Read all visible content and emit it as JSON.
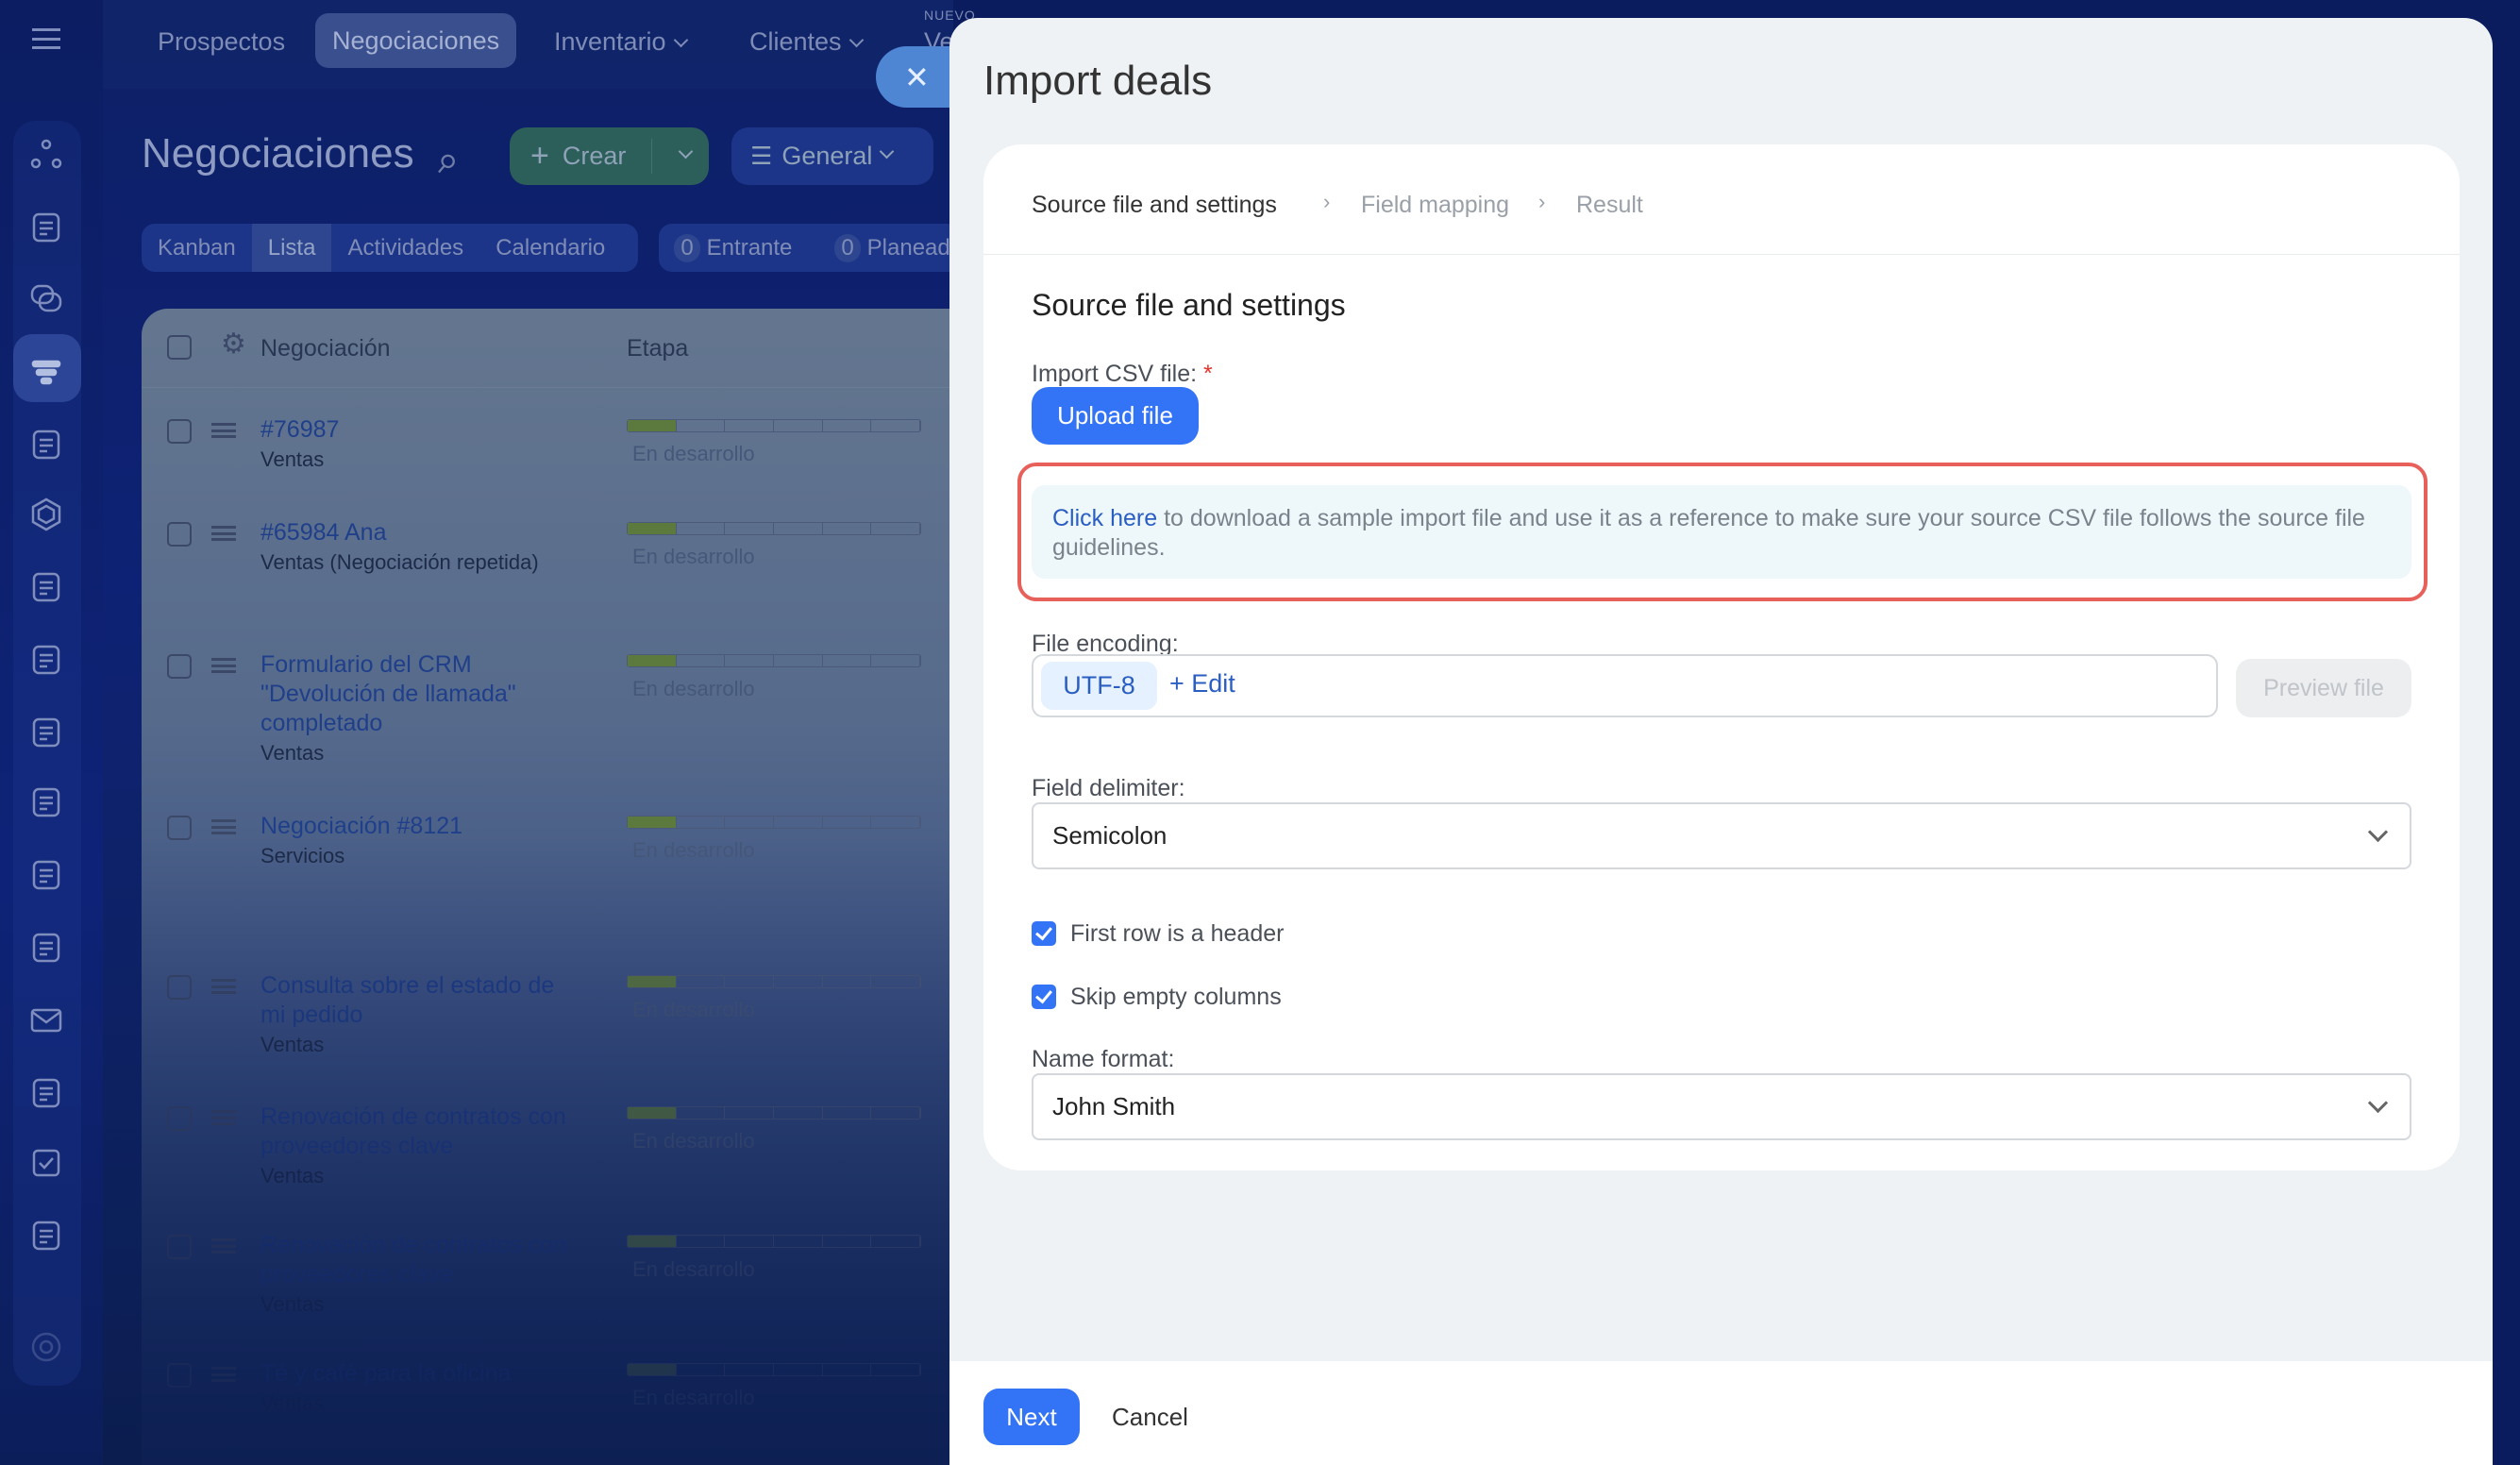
{
  "topnav": {
    "items": [
      "Prospectos",
      "Negociaciones",
      "Inventario",
      "Clientes"
    ],
    "active": "Negociaciones",
    "new_badge": "NUEVO",
    "cut_item": "Ve"
  },
  "sidebar": {
    "icons": [
      "circles-icon",
      "document-icon",
      "chat-icon",
      "funnel-icon",
      "contact-icon",
      "hexagon-icon",
      "calendar-icon",
      "robot-icon",
      "file-icon",
      "store-icon",
      "presentation-icon",
      "card-icon",
      "mail-icon",
      "users-icon",
      "task-icon",
      "schedule-icon",
      "settings-icon"
    ],
    "active": "funnel-icon"
  },
  "page": {
    "title": "Negociaciones",
    "create_label": "Crear",
    "filter_label": "General"
  },
  "view_tabs": [
    "Kanban",
    "Lista",
    "Actividades",
    "Calendario"
  ],
  "counters": [
    {
      "count": "0",
      "label": "Entrante"
    },
    {
      "count": "0",
      "label": "Planead"
    }
  ],
  "table": {
    "headers": [
      "Negociación",
      "Etapa"
    ],
    "rows": [
      {
        "title": "#76987",
        "subtitle": "Ventas",
        "stage": "En desarrollo"
      },
      {
        "title": "#65984 Ana",
        "subtitle": "Ventas (Negociación repetida)",
        "stage": "En desarrollo"
      },
      {
        "title": "Formulario del CRM \"Devolución de llamada\" completado",
        "subtitle": "Ventas",
        "stage": "En desarrollo"
      },
      {
        "title": "Negociación #8121",
        "subtitle": "Servicios",
        "stage": "En desarrollo"
      },
      {
        "title": "Consulta sobre el estado de mi pedido",
        "subtitle": "Ventas",
        "stage": "En desarrollo"
      },
      {
        "title": "Renovación de contratos con proveedores clave",
        "subtitle": "Ventas",
        "stage": "En desarrollo"
      },
      {
        "title": "Renovación de contratos con proveedores clave",
        "subtitle": "Ventas",
        "stage": "En desarrollo"
      },
      {
        "title": "Té y café para la oficina",
        "subtitle": "Ventas",
        "stage": "En desarrollo"
      }
    ]
  },
  "dialog": {
    "title": "Import deals",
    "steps": [
      "Source file and settings",
      "Field mapping",
      "Result"
    ],
    "section_title": "Source file and settings",
    "csv_label": "Import CSV file:",
    "required_mark": "*",
    "upload_label": "Upload file",
    "info_link": "Click here",
    "info_text": " to download a sample import file and use it as a reference to make sure your source CSV file follows the source file guidelines.",
    "encoding_label": "File encoding:",
    "encoding_value": "UTF-8",
    "encoding_edit": "+ Edit",
    "preview_label": "Preview file",
    "delimiter_label": "Field delimiter:",
    "delimiter_value": "Semicolon",
    "first_row_label": "First row is a header",
    "first_row_checked": true,
    "skip_empty_label": "Skip empty columns",
    "skip_empty_checked": true,
    "name_format_label": "Name format:",
    "name_format_value": "John Smith",
    "next_label": "Next",
    "cancel_label": "Cancel"
  },
  "colors": {
    "primary": "#3373f5",
    "highlight_border": "#e8605a",
    "info_bg": "#eef8fb",
    "link": "#2a5ec2"
  }
}
